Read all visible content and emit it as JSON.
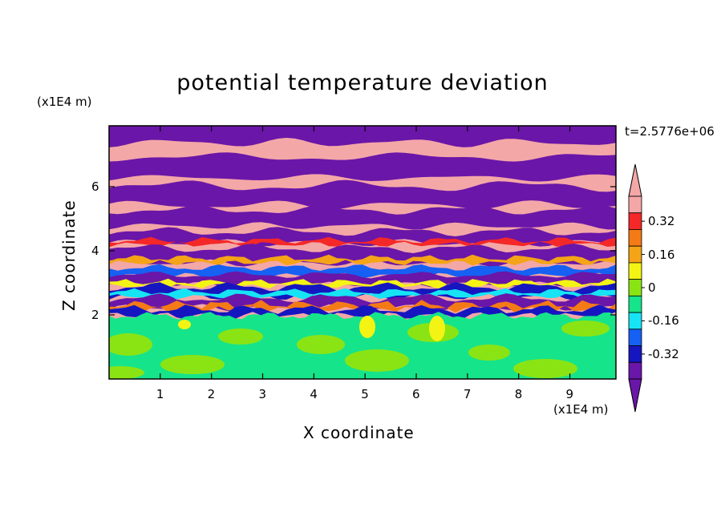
{
  "chart_data": {
    "type": "heatmap",
    "title": "potential temperature deviation",
    "xlabel": "X coordinate",
    "ylabel": "Z coordinate",
    "x_unit": "(x1E4 m)",
    "y_unit": "(x1E4 m)",
    "time_label": "t=2.5776e+06",
    "x_ticks": [
      "1",
      "2",
      "3",
      "4",
      "5",
      "6",
      "7",
      "8",
      "9"
    ],
    "y_ticks": [
      "2",
      "4",
      "6"
    ],
    "xlim": [
      0,
      9.9
    ],
    "ylim": [
      0,
      7.9
    ],
    "colorbar": {
      "levels": [
        -0.4,
        -0.32,
        -0.24,
        -0.16,
        -0.08,
        0,
        0.08,
        0.16,
        0.24,
        0.32,
        0.4
      ],
      "tick_labels": [
        "0.32",
        "0.16",
        "0",
        "-0.16",
        "-0.32"
      ],
      "tick_values": [
        0.32,
        0.16,
        0,
        -0.16,
        -0.32
      ],
      "colors_high_to_low": [
        "#f4a7a7",
        "#f42828",
        "#f47a16",
        "#f4a416",
        "#f4f414",
        "#8ae414",
        "#16e48a",
        "#16e4f4",
        "#1660f4",
        "#1616c0",
        "#6a16a8"
      ]
    }
  },
  "colors": {
    "pink": "#f4a7a7",
    "purple": "#6a16a8",
    "green_low": "#16e48a",
    "green_high": "#8ae414"
  }
}
